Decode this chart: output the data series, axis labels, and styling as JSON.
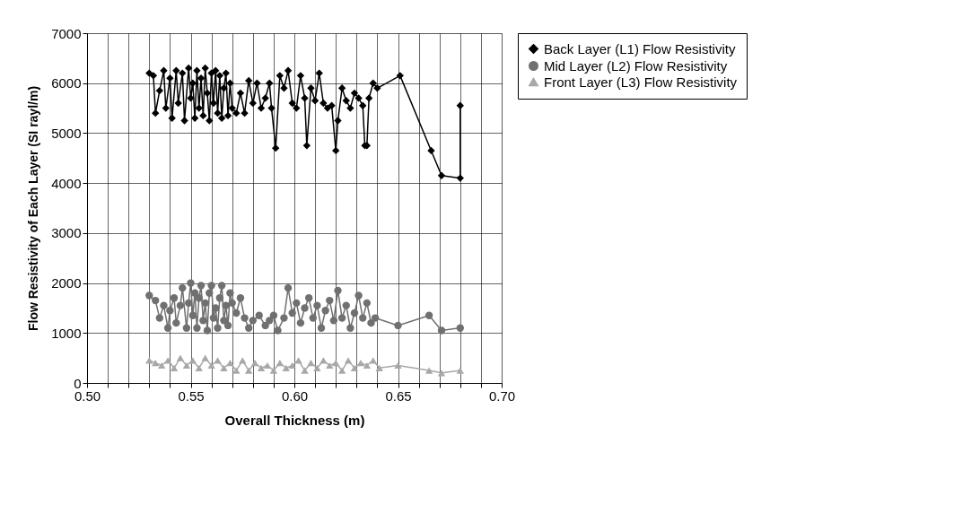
{
  "chart_data": {
    "type": "line",
    "xlabel": "Overall Thickness (m)",
    "ylabel": "Flow Resistivity of Each Layer (SI rayl/m)",
    "xlim": [
      0.5,
      0.7
    ],
    "ylim": [
      0,
      7000
    ],
    "xticks": [
      {
        "value": 0.5,
        "label": "0.50"
      },
      {
        "value": 0.51,
        "label": null
      },
      {
        "value": 0.52,
        "label": null
      },
      {
        "value": 0.53,
        "label": null
      },
      {
        "value": 0.54,
        "label": null
      },
      {
        "value": 0.55,
        "label": "0.55"
      },
      {
        "value": 0.56,
        "label": null
      },
      {
        "value": 0.57,
        "label": null
      },
      {
        "value": 0.58,
        "label": null
      },
      {
        "value": 0.59,
        "label": null
      },
      {
        "value": 0.6,
        "label": "0.60"
      },
      {
        "value": 0.61,
        "label": null
      },
      {
        "value": 0.62,
        "label": null
      },
      {
        "value": 0.63,
        "label": null
      },
      {
        "value": 0.64,
        "label": null
      },
      {
        "value": 0.65,
        "label": "0.65"
      },
      {
        "value": 0.66,
        "label": null
      },
      {
        "value": 0.67,
        "label": null
      },
      {
        "value": 0.68,
        "label": null
      },
      {
        "value": 0.69,
        "label": null
      },
      {
        "value": 0.7,
        "label": "0.70"
      }
    ],
    "yticks": [
      0,
      1000,
      2000,
      3000,
      4000,
      5000,
      6000,
      7000
    ],
    "grid": true,
    "legend": "right",
    "line_style": "solid",
    "series": [
      {
        "name": "Back Layer (L1) Flow Resistivity",
        "color": "#000000",
        "marker": "diamond",
        "x": [
          0.53,
          0.532,
          0.533,
          0.535,
          0.537,
          0.538,
          0.54,
          0.541,
          0.543,
          0.544,
          0.546,
          0.547,
          0.549,
          0.55,
          0.551,
          0.552,
          0.553,
          0.554,
          0.555,
          0.556,
          0.557,
          0.558,
          0.559,
          0.56,
          0.561,
          0.562,
          0.563,
          0.564,
          0.565,
          0.566,
          0.567,
          0.568,
          0.569,
          0.57,
          0.572,
          0.574,
          0.576,
          0.578,
          0.58,
          0.582,
          0.584,
          0.586,
          0.588,
          0.589,
          0.591,
          0.593,
          0.595,
          0.597,
          0.599,
          0.601,
          0.603,
          0.605,
          0.606,
          0.608,
          0.61,
          0.612,
          0.614,
          0.616,
          0.618,
          0.62,
          0.621,
          0.623,
          0.625,
          0.627,
          0.629,
          0.631,
          0.633,
          0.634,
          0.635,
          0.636,
          0.638,
          0.64,
          0.651,
          0.666,
          0.671,
          0.68,
          0.68
        ],
        "values": [
          6200,
          6150,
          5400,
          5850,
          6250,
          5500,
          6100,
          5300,
          6250,
          5600,
          6200,
          5250,
          6300,
          5700,
          6000,
          5300,
          6250,
          5500,
          6100,
          5350,
          6300,
          5800,
          5250,
          6200,
          5600,
          6250,
          5400,
          6150,
          5300,
          5900,
          6200,
          5350,
          6000,
          5500,
          5400,
          5800,
          5400,
          6050,
          5600,
          6000,
          5500,
          5700,
          6000,
          5500,
          4700,
          6150,
          5900,
          6250,
          5600,
          5500,
          6150,
          5700,
          4750,
          5900,
          5650,
          6200,
          5600,
          5500,
          5550,
          4650,
          5250,
          5900,
          5650,
          5500,
          5800,
          5700,
          5550,
          4750,
          4750,
          5700,
          6000,
          5900,
          6150,
          4650,
          4150,
          4100,
          5550
        ]
      },
      {
        "name": "Mid Layer (L2) Flow Resistivity",
        "color": "#707070",
        "marker": "circle",
        "x": [
          0.53,
          0.533,
          0.535,
          0.537,
          0.539,
          0.54,
          0.542,
          0.543,
          0.545,
          0.546,
          0.548,
          0.549,
          0.55,
          0.551,
          0.552,
          0.553,
          0.554,
          0.555,
          0.556,
          0.557,
          0.558,
          0.559,
          0.56,
          0.561,
          0.562,
          0.563,
          0.564,
          0.565,
          0.566,
          0.567,
          0.568,
          0.569,
          0.57,
          0.572,
          0.574,
          0.576,
          0.578,
          0.58,
          0.583,
          0.586,
          0.588,
          0.59,
          0.592,
          0.595,
          0.597,
          0.599,
          0.601,
          0.603,
          0.605,
          0.607,
          0.609,
          0.611,
          0.613,
          0.615,
          0.617,
          0.619,
          0.621,
          0.623,
          0.625,
          0.627,
          0.629,
          0.631,
          0.633,
          0.635,
          0.637,
          0.639,
          0.65,
          0.665,
          0.671,
          0.68
        ],
        "values": [
          1750,
          1650,
          1300,
          1550,
          1100,
          1450,
          1700,
          1200,
          1550,
          1900,
          1100,
          1600,
          2000,
          1350,
          1800,
          1100,
          1700,
          1950,
          1250,
          1600,
          1050,
          1800,
          1950,
          1300,
          1500,
          1100,
          1700,
          1950,
          1250,
          1550,
          1150,
          1800,
          1600,
          1400,
          1700,
          1300,
          1100,
          1250,
          1350,
          1150,
          1250,
          1350,
          1050,
          1300,
          1900,
          1400,
          1600,
          1200,
          1500,
          1700,
          1300,
          1550,
          1100,
          1450,
          1650,
          1250,
          1850,
          1300,
          1550,
          1100,
          1400,
          1750,
          1300,
          1600,
          1200,
          1300,
          1150,
          1350,
          1050,
          1100
        ]
      },
      {
        "name": "Front Layer (L3) Flow Resistivity",
        "color": "#a8a8a8",
        "marker": "triangle",
        "x": [
          0.53,
          0.533,
          0.536,
          0.539,
          0.542,
          0.545,
          0.548,
          0.551,
          0.554,
          0.557,
          0.56,
          0.563,
          0.566,
          0.569,
          0.572,
          0.575,
          0.578,
          0.581,
          0.584,
          0.587,
          0.59,
          0.593,
          0.596,
          0.599,
          0.602,
          0.605,
          0.608,
          0.611,
          0.614,
          0.617,
          0.62,
          0.623,
          0.626,
          0.629,
          0.632,
          0.635,
          0.638,
          0.641,
          0.65,
          0.665,
          0.671,
          0.68
        ],
        "values": [
          450,
          400,
          350,
          450,
          300,
          500,
          350,
          450,
          300,
          500,
          350,
          450,
          300,
          400,
          250,
          450,
          250,
          400,
          300,
          350,
          250,
          400,
          300,
          350,
          450,
          250,
          400,
          300,
          450,
          350,
          400,
          250,
          450,
          300,
          400,
          350,
          450,
          300,
          350,
          250,
          200,
          250
        ]
      }
    ]
  }
}
